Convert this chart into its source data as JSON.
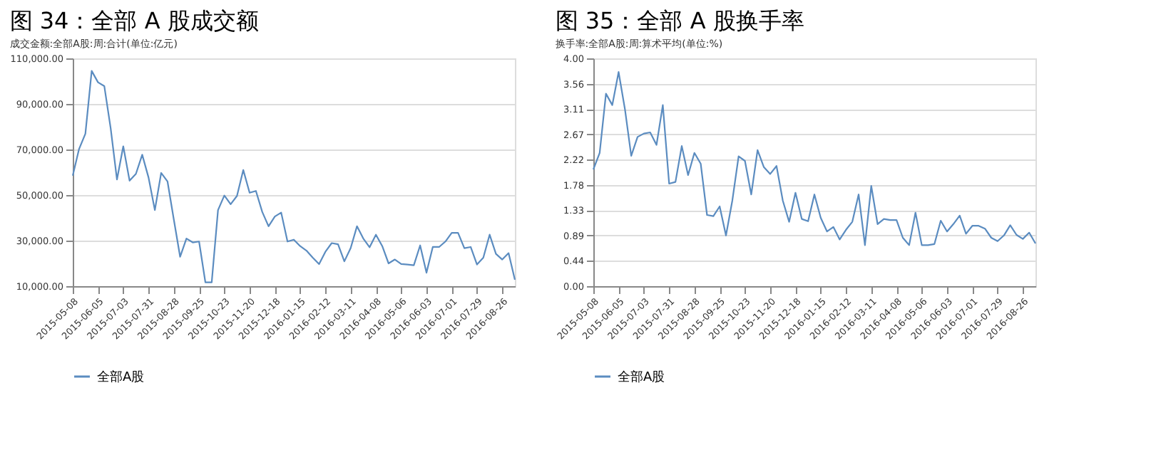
{
  "chart_data": [
    {
      "type": "line",
      "title": "图 34：全部 A 股成交额",
      "subtitle": "成交金额:全部A股:周:合计(单位:亿元)",
      "x": [
        "2015-05-08",
        "2015-05-15",
        "2015-05-22",
        "2015-05-29",
        "2015-06-05",
        "2015-06-12",
        "2015-06-19",
        "2015-06-26",
        "2015-07-03",
        "2015-07-10",
        "2015-07-17",
        "2015-07-24",
        "2015-07-31",
        "2015-08-07",
        "2015-08-14",
        "2015-08-21",
        "2015-08-28",
        "2015-09-04",
        "2015-09-11",
        "2015-09-18",
        "2015-09-25",
        "2015-10-02",
        "2015-10-09",
        "2015-10-16",
        "2015-10-23",
        "2015-10-30",
        "2015-11-06",
        "2015-11-13",
        "2015-11-20",
        "2015-11-27",
        "2015-12-04",
        "2015-12-11",
        "2015-12-18",
        "2015-12-25",
        "2016-01-01",
        "2016-01-08",
        "2016-01-15",
        "2016-01-22",
        "2016-01-29",
        "2016-02-05",
        "2016-02-12",
        "2016-02-19",
        "2016-02-26",
        "2016-03-04",
        "2016-03-11",
        "2016-03-18",
        "2016-03-25",
        "2016-04-01",
        "2016-04-08",
        "2016-04-15",
        "2016-04-22",
        "2016-04-29",
        "2016-05-06",
        "2016-05-13",
        "2016-05-20",
        "2016-05-27",
        "2016-06-03",
        "2016-06-10",
        "2016-06-17",
        "2016-06-24",
        "2016-07-01",
        "2016-07-08",
        "2016-07-15",
        "2016-07-22",
        "2016-07-29",
        "2016-08-05",
        "2016-08-12",
        "2016-08-19",
        "2016-08-26",
        "2016-09-02",
        "2016-09-09"
      ],
      "series": [
        {
          "name": "全部A股",
          "color": "#5b8cc0",
          "values": [
            58500,
            70200,
            76900,
            104500,
            99500,
            97800,
            79400,
            56800,
            71400,
            56300,
            59300,
            67700,
            57700,
            43400,
            59700,
            56000,
            39300,
            22900,
            30900,
            29200,
            29600,
            11700,
            11700,
            43400,
            49800,
            46000,
            49600,
            61000,
            51000,
            51800,
            42600,
            36300,
            40600,
            42300,
            29600,
            30400,
            27600,
            25600,
            22500,
            19700,
            25100,
            28900,
            28400,
            20900,
            26700,
            36300,
            30900,
            27100,
            32600,
            27600,
            20000,
            21700,
            19700,
            19500,
            19200,
            27900,
            15900,
            27200,
            27200,
            29600,
            33400,
            33400,
            26700,
            27200,
            19500,
            22500,
            32600,
            24200,
            21700,
            24500,
            12800
          ]
        }
      ],
      "xlim": [
        "2015-05-08",
        "2016-09-09"
      ],
      "xticks": [
        "2015-05-08",
        "2015-06-05",
        "2015-07-03",
        "2015-07-31",
        "2015-08-28",
        "2015-09-25",
        "2015-10-23",
        "2015-11-20",
        "2015-12-18",
        "2016-01-15",
        "2016-02-12",
        "2016-03-11",
        "2016-04-08",
        "2016-05-06",
        "2016-06-03",
        "2016-07-01",
        "2016-07-29",
        "2016-08-26"
      ],
      "ylim": [
        10000,
        110000
      ],
      "yticks": [
        {
          "value": 10000,
          "label": "10,000.00"
        },
        {
          "value": 30000,
          "label": "30,000.00"
        },
        {
          "value": 50000,
          "label": "50,000.00"
        },
        {
          "value": 70000,
          "label": "70,000.00"
        },
        {
          "value": 90000,
          "label": "90,000.00"
        },
        {
          "value": 110000,
          "label": "110,000.00"
        }
      ],
      "grid": "y",
      "legend": "bottom"
    },
    {
      "type": "line",
      "title": "图 35：全部 A 股换手率",
      "subtitle": "换手率:全部A股:周:算术平均(单位:%)",
      "x": [
        "2015-05-08",
        "2015-05-15",
        "2015-05-22",
        "2015-05-29",
        "2015-06-05",
        "2015-06-12",
        "2015-06-19",
        "2015-06-26",
        "2015-07-03",
        "2015-07-10",
        "2015-07-17",
        "2015-07-24",
        "2015-07-31",
        "2015-08-07",
        "2015-08-14",
        "2015-08-21",
        "2015-08-28",
        "2015-09-04",
        "2015-09-11",
        "2015-09-18",
        "2015-09-25",
        "2015-10-02",
        "2015-10-09",
        "2015-10-16",
        "2015-10-23",
        "2015-10-30",
        "2015-11-06",
        "2015-11-13",
        "2015-11-20",
        "2015-11-27",
        "2015-12-04",
        "2015-12-11",
        "2015-12-18",
        "2015-12-25",
        "2016-01-01",
        "2016-01-08",
        "2016-01-15",
        "2016-01-22",
        "2016-01-29",
        "2016-02-05",
        "2016-02-12",
        "2016-02-19",
        "2016-02-26",
        "2016-03-04",
        "2016-03-11",
        "2016-03-18",
        "2016-03-25",
        "2016-04-01",
        "2016-04-08",
        "2016-04-15",
        "2016-04-22",
        "2016-04-29",
        "2016-05-06",
        "2016-05-13",
        "2016-05-20",
        "2016-05-27",
        "2016-06-03",
        "2016-06-10",
        "2016-06-17",
        "2016-06-24",
        "2016-07-01",
        "2016-07-08",
        "2016-07-15",
        "2016-07-22",
        "2016-07-29",
        "2016-08-05",
        "2016-08-12",
        "2016-08-19",
        "2016-08-26",
        "2016-09-02",
        "2016-09-09"
      ],
      "series": [
        {
          "name": "全部A股",
          "color": "#5b8cc0",
          "values": [
            2.05,
            2.34,
            3.38,
            3.18,
            3.76,
            3.11,
            2.29,
            2.62,
            2.68,
            2.7,
            2.48,
            3.18,
            1.8,
            1.83,
            2.46,
            1.95,
            2.34,
            2.15,
            1.25,
            1.23,
            1.4,
            0.89,
            1.5,
            2.28,
            2.2,
            1.61,
            2.39,
            2.09,
            1.97,
            2.11,
            1.5,
            1.13,
            1.64,
            1.18,
            1.14,
            1.61,
            1.2,
            0.96,
            1.04,
            0.82,
            0.99,
            1.13,
            1.61,
            0.72,
            1.76,
            1.09,
            1.18,
            1.16,
            1.16,
            0.85,
            0.72,
            1.29,
            0.72,
            0.72,
            0.74,
            1.15,
            0.96,
            1.09,
            1.24,
            0.92,
            1.06,
            1.06,
            1.01,
            0.85,
            0.79,
            0.89,
            1.07,
            0.9,
            0.83,
            0.94,
            0.75
          ]
        }
      ],
      "xlim": [
        "2015-05-08",
        "2016-09-09"
      ],
      "xticks": [
        "2015-05-08",
        "2015-06-05",
        "2015-07-03",
        "2015-07-31",
        "2015-08-28",
        "2015-09-25",
        "2015-10-23",
        "2015-11-20",
        "2015-12-18",
        "2016-01-15",
        "2016-02-12",
        "2016-03-11",
        "2016-04-08",
        "2016-05-06",
        "2016-06-03",
        "2016-07-01",
        "2016-07-29",
        "2016-08-26"
      ],
      "ylim": [
        0,
        4
      ],
      "yticks": [
        {
          "value": 0,
          "label": "0.00"
        },
        {
          "value": 0.4444,
          "label": "0.44"
        },
        {
          "value": 0.8889,
          "label": "0.89"
        },
        {
          "value": 1.3333,
          "label": "1.33"
        },
        {
          "value": 1.7778,
          "label": "1.78"
        },
        {
          "value": 2.2222,
          "label": "2.22"
        },
        {
          "value": 2.6667,
          "label": "2.67"
        },
        {
          "value": 3.1111,
          "label": "3.11"
        },
        {
          "value": 3.5556,
          "label": "3.56"
        },
        {
          "value": 4,
          "label": "4.00"
        }
      ],
      "grid": "y",
      "legend": "bottom"
    }
  ]
}
